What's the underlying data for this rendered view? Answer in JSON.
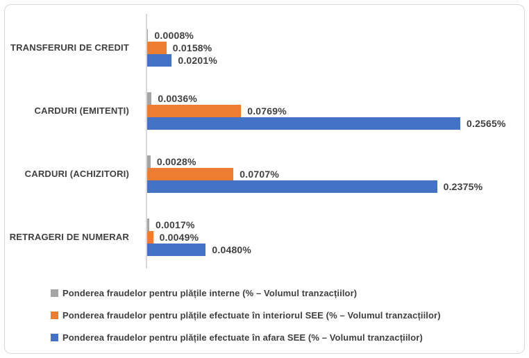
{
  "chart_data": {
    "type": "bar",
    "orientation": "horizontal",
    "title": "",
    "categories": [
      "TRANSFERURI DE CREDIT",
      "CARDURI (EMITENȚI)",
      "CARDURI (ACHIZITORI)",
      "RETRAGERI DE NUMERAR"
    ],
    "series": [
      {
        "name": "Ponderea fraudelor pentru plățile interne (% – Volumul tranzacțiilor)",
        "color": "#A5A5A5",
        "values": [
          0.0008,
          0.0036,
          0.0028,
          0.0017
        ],
        "labels": [
          "0.0008%",
          "0.0036%",
          "0.0028%",
          "0.0017%"
        ]
      },
      {
        "name": "Ponderea fraudelor pentru plățile efectuate în interiorul SEE (% – Volumul tranzacțiilor)",
        "color": "#ED7D31",
        "values": [
          0.0158,
          0.0769,
          0.0707,
          0.0049
        ],
        "labels": [
          "0.0158%",
          "0.0769%",
          "0.0707%",
          "0.0049%"
        ]
      },
      {
        "name": "Ponderea fraudelor pentru plățile efectuate în afara SEE (% – Volumul tranzacțiilor)",
        "color": "#4472C4",
        "values": [
          0.0201,
          0.2565,
          0.2375,
          0.048
        ],
        "labels": [
          "0.0201%",
          "0.2565%",
          "0.2375%",
          "0.0480%"
        ]
      }
    ],
    "xlim": [
      0,
      0.2565
    ],
    "unit": "%",
    "value_format": "0.0000%",
    "grid": false,
    "legend_position": "bottom",
    "axis_color": "#D9D9D9",
    "label_color": "#404040",
    "background_color": "#FFFFFF",
    "border_color": "#D9D9D9"
  }
}
